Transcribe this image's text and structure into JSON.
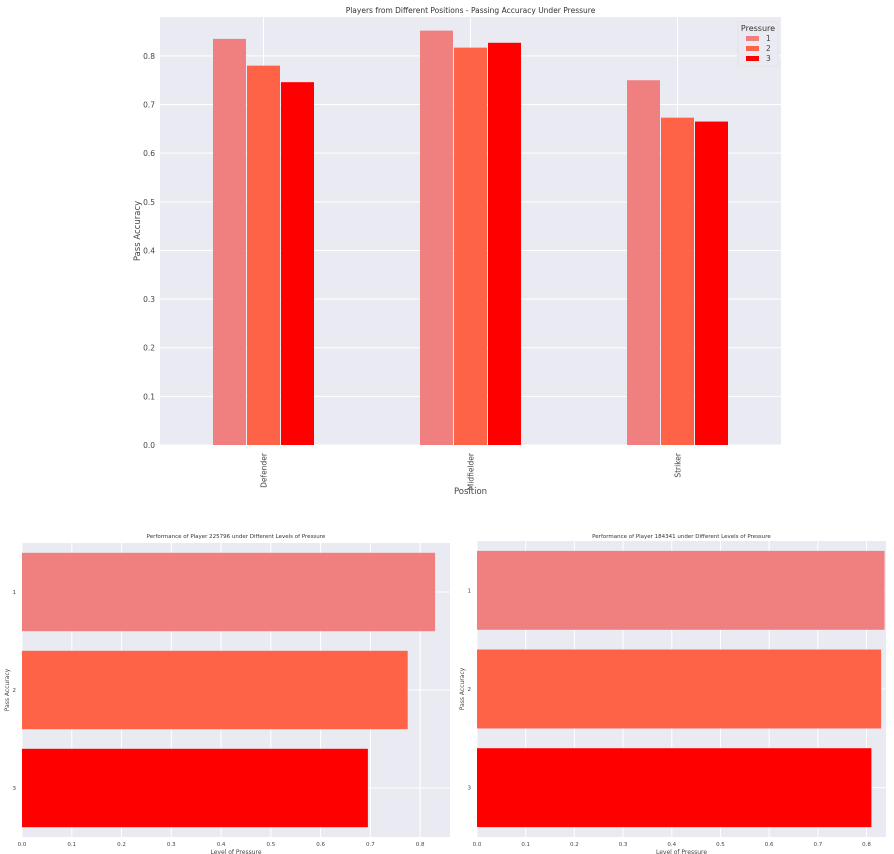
{
  "colors": {
    "1": "#f08080",
    "2": "#ff6347",
    "3": "#ff0000"
  },
  "chart_data": [
    {
      "type": "bar",
      "title": "Players from Different Positions - Passing Accuracy Under Pressure",
      "xlabel": "Position",
      "ylabel": "Pass Accuracy",
      "categories": [
        "Defender",
        "Midfielder",
        "Striker"
      ],
      "series": [
        {
          "name": "1",
          "values": [
            0.835,
            0.852,
            0.75
          ]
        },
        {
          "name": "2",
          "values": [
            0.78,
            0.817,
            0.673
          ]
        },
        {
          "name": "3",
          "values": [
            0.746,
            0.827,
            0.665
          ]
        }
      ],
      "ylim": [
        0,
        0.88
      ],
      "yticks": [
        "0.0",
        "0.1",
        "0.2",
        "0.3",
        "0.4",
        "0.5",
        "0.6",
        "0.7",
        "0.8"
      ],
      "legend": {
        "title": "Pressure",
        "placement": "top-right"
      },
      "grid": true
    },
    {
      "type": "bar",
      "orientation": "horizontal",
      "title": "Performance of Player 225796 under Different Levels of Pressure",
      "xlabel": "Level of Pressure",
      "ylabel": "Pass Accuracy",
      "categories": [
        "1",
        "2",
        "3"
      ],
      "values": [
        0.83,
        0.775,
        0.695
      ],
      "xlim": [
        0,
        0.86
      ],
      "xticks": [
        "0.0",
        "0.1",
        "0.2",
        "0.3",
        "0.4",
        "0.5",
        "0.6",
        "0.7",
        "0.8"
      ],
      "grid": true
    },
    {
      "type": "bar",
      "orientation": "horizontal",
      "title": "Performance of Player 184341 under Different Levels of Pressure",
      "xlabel": "Level of Pressure",
      "ylabel": "Pass Accuracy",
      "categories": [
        "1",
        "2",
        "3"
      ],
      "values": [
        0.837,
        0.83,
        0.81
      ],
      "xlim": [
        0,
        0.84
      ],
      "xticks": [
        "0.0",
        "0.1",
        "0.2",
        "0.3",
        "0.4",
        "0.5",
        "0.6",
        "0.7",
        "0.8"
      ],
      "grid": true
    }
  ]
}
